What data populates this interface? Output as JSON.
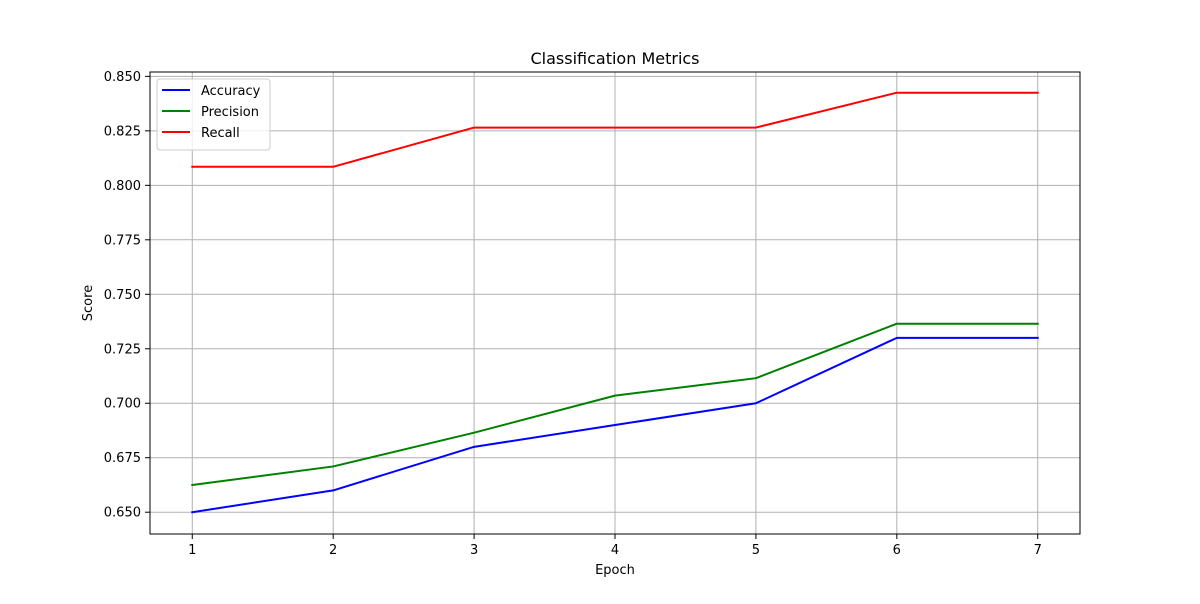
{
  "chart_data": {
    "type": "line",
    "title": "Classification Metrics",
    "xlabel": "Epoch",
    "ylabel": "Score",
    "x": [
      1,
      2,
      3,
      4,
      5,
      6,
      7
    ],
    "xlim": [
      0.7,
      7.3
    ],
    "ylim": [
      0.64,
      0.852
    ],
    "xticks": [
      1,
      2,
      3,
      4,
      5,
      6,
      7
    ],
    "yticks": [
      0.65,
      0.675,
      0.7,
      0.725,
      0.75,
      0.775,
      0.8,
      0.825,
      0.85
    ],
    "ytick_labels": [
      "0.650",
      "0.675",
      "0.700",
      "0.725",
      "0.750",
      "0.775",
      "0.800",
      "0.825",
      "0.850"
    ],
    "grid": true,
    "legend_position": "top-left",
    "series": [
      {
        "name": "Accuracy",
        "color": "#0000ff",
        "values": [
          0.65,
          0.66,
          0.68,
          0.69,
          0.7,
          0.73,
          0.73
        ]
      },
      {
        "name": "Precision",
        "color": "#008000",
        "values": [
          0.6625,
          0.671,
          0.6865,
          0.7035,
          0.7115,
          0.7365,
          0.7365
        ]
      },
      {
        "name": "Recall",
        "color": "#ff0000",
        "values": [
          0.8085,
          0.8085,
          0.8265,
          0.8265,
          0.8265,
          0.8425,
          0.8425
        ]
      }
    ]
  }
}
